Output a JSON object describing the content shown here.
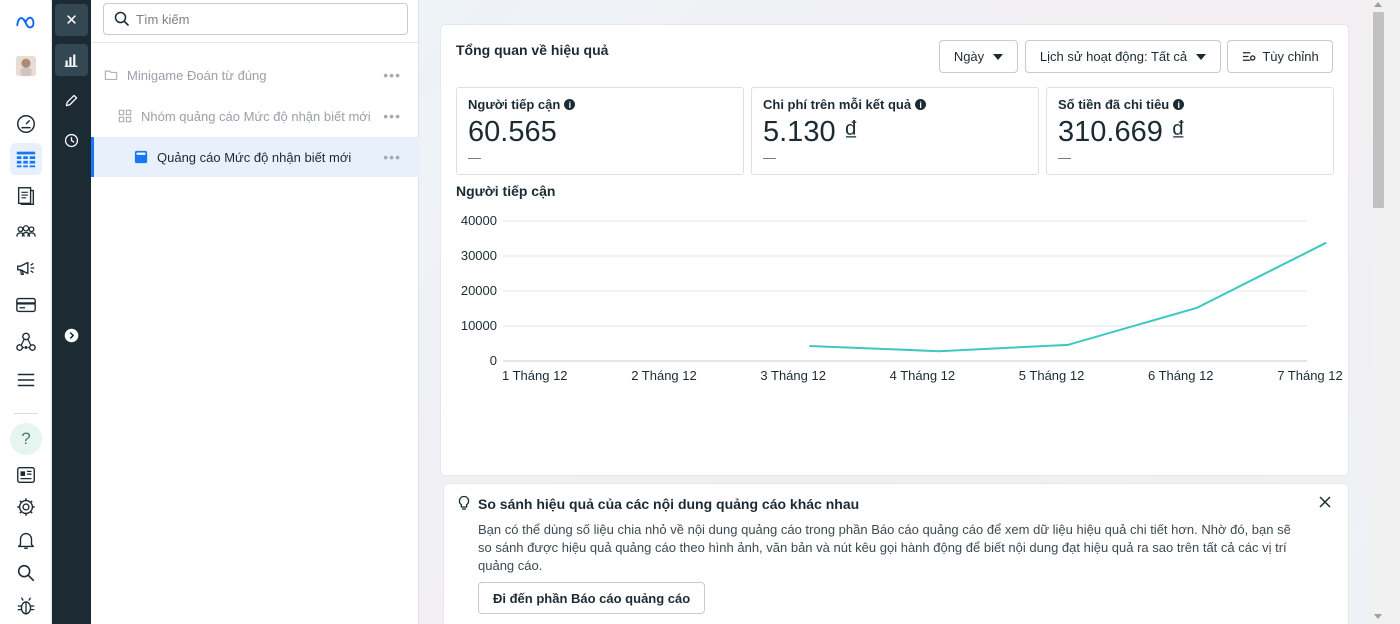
{
  "rail": {
    "icons": [
      "meta-logo-icon",
      "profile-avatar",
      "dashboard-gauge-icon",
      "ads-manager-table-icon",
      "pages-icon",
      "audiences-icon",
      "campaigns-megaphone-icon",
      "billing-card-icon",
      "business-network-icon",
      "all-tools-menu-icon",
      "help-icon",
      "news-icon",
      "settings-gear-icon",
      "notifications-bell-icon",
      "search-icon",
      "bug-report-icon"
    ],
    "help_label": "?"
  },
  "toolbar": {
    "icons": [
      "close-icon",
      "performance-chart-icon",
      "edit-pencil-icon",
      "history-clock-icon",
      "expand-arrow-icon"
    ],
    "close_glyph": "✕"
  },
  "tree": {
    "search_placeholder": "Tìm kiếm",
    "nodes": [
      {
        "label": "Minigame Đoán từ đúng",
        "level": 0,
        "selected": false
      },
      {
        "label": "Nhóm quảng cáo Mức độ nhận biết mới",
        "level": 1,
        "selected": false
      },
      {
        "label": "Quảng cáo Mức độ nhận biết mới",
        "level": 2,
        "selected": true
      }
    ],
    "more_glyph": "•••"
  },
  "overview": {
    "title": "Tổng quan về hiệu quả",
    "day_button": "Ngày",
    "activity_button": "Lịch sử hoạt động: Tất cả",
    "customize_button": "Tùy chỉnh",
    "metrics": [
      {
        "label": "Người tiếp cận",
        "value": "60.565",
        "sub": "—"
      },
      {
        "label": "Chi phí trên mỗi kết quả",
        "value": "5.130 ₫",
        "sub": "—"
      },
      {
        "label": "Số tiền đã chi tiêu",
        "value": "310.669 ₫",
        "sub": "—"
      }
    ],
    "info_glyph": "i"
  },
  "chart_data": {
    "type": "line",
    "title": "Người tiếp cận",
    "categories": [
      "1 Tháng 12",
      "2 Tháng 12",
      "3 Tháng 12",
      "4 Tháng 12",
      "5 Tháng 12",
      "6 Tháng 12",
      "7 Tháng 12"
    ],
    "series": [
      {
        "values": [
          null,
          null,
          4300,
          2800,
          4600,
          15200,
          33800
        ]
      }
    ],
    "yticks": [
      0,
      10000,
      20000,
      30000,
      40000
    ],
    "ylim": [
      0,
      40000
    ],
    "grid": true,
    "color": "#3cc8c0"
  },
  "tip": {
    "title": "So sánh hiệu quả của các nội dung quảng cáo khác nhau",
    "body": "Bạn có thể dùng số liệu chia nhỏ về nội dung quảng cáo trong phần Báo cáo quảng cáo để xem dữ liệu hiệu quả chi tiết hơn. Nhờ đó, bạn sẽ so sánh được hiệu quả quảng cáo theo hình ảnh, văn bản và nút kêu gọi hành động để biết nội dung đạt hiệu quả ra sao trên tất cả các vị trí quảng cáo.",
    "button": "Đi đến phần Báo cáo quảng cáo"
  }
}
